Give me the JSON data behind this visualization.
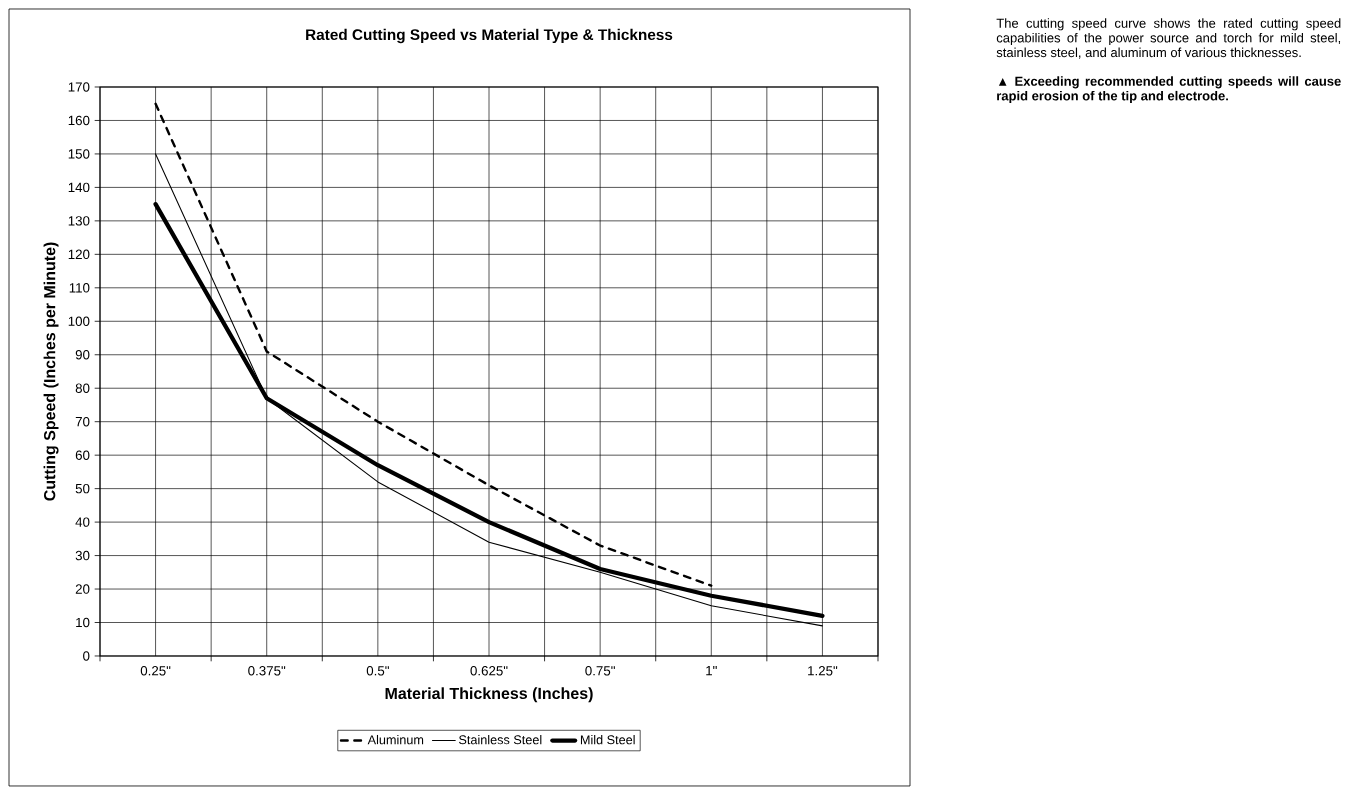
{
  "chart_data": {
    "type": "line",
    "title": "Rated Cutting Speed vs Material Type & Thickness",
    "xlabel": "Material Thickness (Inches)",
    "ylabel": "Cutting Speed (Inches per Minute)",
    "categories": [
      "0.25\"",
      "0.375\"",
      "0.5\"",
      "0.625\"",
      "0.75\"",
      "1\"",
      "1.25\""
    ],
    "series": [
      {
        "name": "Aluminum",
        "color": "#000000",
        "line_style": "dashed",
        "values": [
          165,
          91,
          70,
          51,
          33,
          21,
          null
        ]
      },
      {
        "name": "Stainless Steel",
        "color": "#000000",
        "line_style": "solid",
        "values": [
          150,
          77,
          52,
          34,
          25,
          15,
          9
        ]
      },
      {
        "name": "Mild Steel",
        "color": "#000000",
        "line_style": "solid",
        "values": [
          135,
          77,
          57,
          40,
          26,
          18,
          12
        ]
      }
    ],
    "ylim": [
      0,
      170
    ],
    "yticks": [
      0,
      10,
      20,
      30,
      40,
      50,
      60,
      70,
      80,
      90,
      100,
      110,
      120,
      130,
      140,
      150,
      160,
      170
    ],
    "grid": true,
    "legend": "bottom",
    "annotations": [
      "The cutting speed curve shows the rated cutting speed capabilities of the power source and torch for mild steel, stainless steel, and aluminum of various thicknesses.",
      "▲ **Exceeding recommended cutting speeds will cause rapid erosion of the tip and electrode.**"
    ]
  }
}
